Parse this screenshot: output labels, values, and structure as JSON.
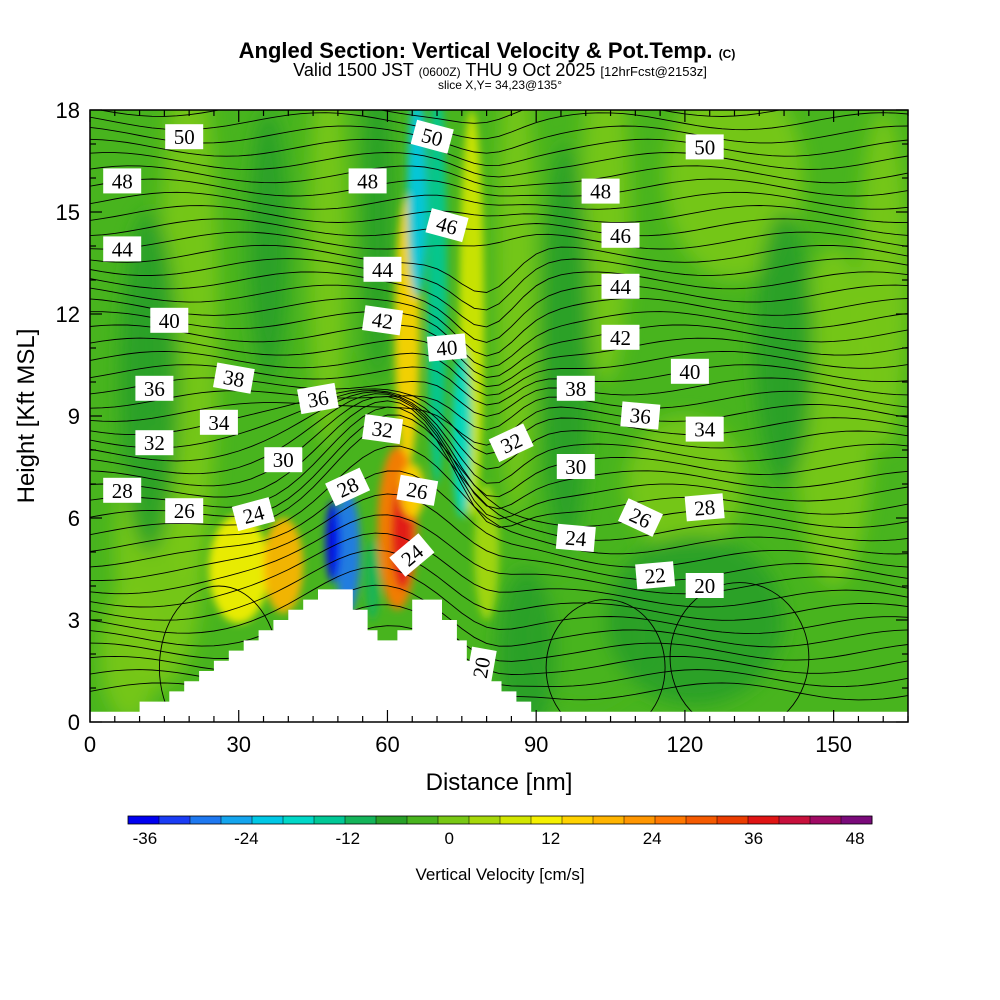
{
  "chart_data": {
    "type": "contour-cross-section",
    "title": {
      "main": "Angled Section: Vertical Velocity & Pot.Temp.",
      "main_suffix": "(C)",
      "line2_prefix": "Valid 1500 JST",
      "line2_small": "(0600Z)",
      "line2_date": "THU 9 Oct 2025",
      "line2_fcst": "[12hrFcst@2153z]",
      "line3": "slice X,Y= 34,23@135°"
    },
    "xlabel": "Distance [nm]",
    "ylabel": "Height [Kft MSL]",
    "xlim": [
      0,
      165
    ],
    "ylim": [
      0,
      18
    ],
    "x_ticks": [
      0,
      30,
      60,
      90,
      120,
      150
    ],
    "y_ticks": [
      0,
      3,
      6,
      9,
      12,
      15,
      18
    ],
    "colorbar": {
      "label": "Vertical Velocity [cm/s]",
      "range": [
        -38,
        50
      ],
      "step": 4,
      "ticks": [
        -36,
        -24,
        -12,
        0,
        12,
        24,
        36,
        48
      ],
      "colors": [
        "#0000f0",
        "#1a3cf5",
        "#1e78f0",
        "#14a5ee",
        "#00c8e6",
        "#00d8c8",
        "#00c896",
        "#14b45a",
        "#28a028",
        "#48b41e",
        "#78c814",
        "#a6d80a",
        "#d2e600",
        "#f5f000",
        "#ffd200",
        "#ffb400",
        "#ff9600",
        "#ff7800",
        "#f55a00",
        "#eb3c00",
        "#e01414",
        "#c8103c",
        "#a00a64",
        "#7a0a7a"
      ]
    },
    "terrain_kft": [
      [
        0,
        0.3
      ],
      [
        10,
        0.3
      ],
      [
        10,
        0.6
      ],
      [
        16,
        0.6
      ],
      [
        16,
        0.9
      ],
      [
        19,
        0.9
      ],
      [
        19,
        1.2
      ],
      [
        22,
        1.2
      ],
      [
        22,
        1.5
      ],
      [
        25,
        1.5
      ],
      [
        25,
        1.8
      ],
      [
        28,
        1.8
      ],
      [
        28,
        2.1
      ],
      [
        31,
        2.1
      ],
      [
        31,
        2.4
      ],
      [
        34,
        2.4
      ],
      [
        34,
        2.7
      ],
      [
        37,
        2.7
      ],
      [
        37,
        3.0
      ],
      [
        40,
        3.0
      ],
      [
        40,
        3.3
      ],
      [
        43,
        3.3
      ],
      [
        43,
        3.6
      ],
      [
        46,
        3.6
      ],
      [
        46,
        3.9
      ],
      [
        53,
        3.9
      ],
      [
        53,
        3.3
      ],
      [
        56,
        3.3
      ],
      [
        56,
        2.7
      ],
      [
        58,
        2.7
      ],
      [
        58,
        2.4
      ],
      [
        62,
        2.4
      ],
      [
        62,
        2.7
      ],
      [
        65,
        2.7
      ],
      [
        65,
        3.6
      ],
      [
        71,
        3.6
      ],
      [
        71,
        3.0
      ],
      [
        74,
        3.0
      ],
      [
        74,
        2.4
      ],
      [
        76,
        2.4
      ],
      [
        76,
        1.8
      ],
      [
        79,
        1.8
      ],
      [
        79,
        1.2
      ],
      [
        83,
        1.2
      ],
      [
        83,
        0.9
      ],
      [
        86,
        0.9
      ],
      [
        86,
        0.6
      ],
      [
        89,
        0.6
      ],
      [
        89,
        0.3
      ],
      [
        165,
        0.3
      ]
    ],
    "theta_contour_labels": [
      {
        "text": "50",
        "x": 19,
        "z": 17.2,
        "angle": 0
      },
      {
        "text": "50",
        "x": 69,
        "z": 17.2,
        "angle": 15
      },
      {
        "text": "50",
        "x": 124,
        "z": 16.9,
        "angle": 0
      },
      {
        "text": "48",
        "x": 6.5,
        "z": 15.9,
        "angle": 0
      },
      {
        "text": "48",
        "x": 56,
        "z": 15.9,
        "angle": 0
      },
      {
        "text": "48",
        "x": 103,
        "z": 15.6,
        "angle": 0
      },
      {
        "text": "46",
        "x": 72,
        "z": 14.6,
        "angle": 15
      },
      {
        "text": "46",
        "x": 107,
        "z": 14.3,
        "angle": 0
      },
      {
        "text": "44",
        "x": 6.5,
        "z": 13.9,
        "angle": 0
      },
      {
        "text": "44",
        "x": 59,
        "z": 13.3,
        "angle": 0
      },
      {
        "text": "44",
        "x": 107,
        "z": 12.8,
        "angle": 0
      },
      {
        "text": "42",
        "x": 59,
        "z": 11.8,
        "angle": 8
      },
      {
        "text": "42",
        "x": 107,
        "z": 11.3,
        "angle": 0
      },
      {
        "text": "40",
        "x": 16,
        "z": 11.8,
        "angle": 0
      },
      {
        "text": "40",
        "x": 72,
        "z": 11.0,
        "angle": -5
      },
      {
        "text": "40",
        "x": 121,
        "z": 10.3,
        "angle": 0
      },
      {
        "text": "38",
        "x": 29,
        "z": 10.1,
        "angle": 10
      },
      {
        "text": "38",
        "x": 98,
        "z": 9.8,
        "angle": 0
      },
      {
        "text": "36",
        "x": 13,
        "z": 9.8,
        "angle": 0
      },
      {
        "text": "36",
        "x": 46,
        "z": 9.5,
        "angle": -10
      },
      {
        "text": "36",
        "x": 111,
        "z": 9.0,
        "angle": 5
      },
      {
        "text": "34",
        "x": 26,
        "z": 8.8,
        "angle": 0
      },
      {
        "text": "34",
        "x": 124,
        "z": 8.6,
        "angle": 0
      },
      {
        "text": "32",
        "x": 13,
        "z": 8.2,
        "angle": 0
      },
      {
        "text": "32",
        "x": 59,
        "z": 8.6,
        "angle": 8
      },
      {
        "text": "32",
        "x": 85,
        "z": 8.2,
        "angle": -25
      },
      {
        "text": "30",
        "x": 39,
        "z": 7.7,
        "angle": 0
      },
      {
        "text": "30",
        "x": 98,
        "z": 7.5,
        "angle": 0
      },
      {
        "text": "28",
        "x": 6.5,
        "z": 6.8,
        "angle": 0
      },
      {
        "text": "28",
        "x": 52,
        "z": 6.9,
        "angle": -25
      },
      {
        "text": "28",
        "x": 124,
        "z": 6.3,
        "angle": -5
      },
      {
        "text": "26",
        "x": 19,
        "z": 6.2,
        "angle": 0
      },
      {
        "text": "26",
        "x": 66,
        "z": 6.8,
        "angle": 10
      },
      {
        "text": "26",
        "x": 111,
        "z": 6.0,
        "angle": 25
      },
      {
        "text": "24",
        "x": 33,
        "z": 6.1,
        "angle": -15
      },
      {
        "text": "24",
        "x": 65,
        "z": 4.9,
        "angle": -40
      },
      {
        "text": "24",
        "x": 98,
        "z": 5.4,
        "angle": 5
      },
      {
        "text": "22",
        "x": 114,
        "z": 4.3,
        "angle": -5
      },
      {
        "text": "20",
        "x": 124,
        "z": 4.0,
        "angle": 0
      },
      {
        "text": "20",
        "x": 79,
        "z": 1.6,
        "angle": -80
      }
    ]
  }
}
